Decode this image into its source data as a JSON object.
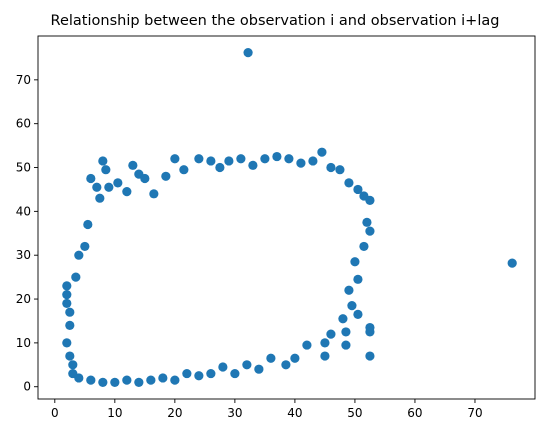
{
  "chart_data": {
    "type": "scatter",
    "title": "Relationship between the observation i and observation i+lag",
    "xlabel": "",
    "ylabel": "",
    "xlim": [
      -2.8,
      80.0
    ],
    "ylim": [
      -2.8,
      80.0
    ],
    "xticks": [
      0,
      10,
      20,
      30,
      40,
      50,
      60,
      70
    ],
    "yticks": [
      0,
      10,
      20,
      30,
      40,
      50,
      60,
      70
    ],
    "grid": false,
    "legend": "none",
    "series": [
      {
        "color": "#1f77b4",
        "marker": "circle",
        "points": [
          [
            32.2,
            76.2
          ],
          [
            76.2,
            28.2
          ],
          [
            2.0,
            23.0
          ],
          [
            2.0,
            21.0
          ],
          [
            2.0,
            19.0
          ],
          [
            2.5,
            17.0
          ],
          [
            2.5,
            14.0
          ],
          [
            2.0,
            10.0
          ],
          [
            2.5,
            7.0
          ],
          [
            3.0,
            5.0
          ],
          [
            3.0,
            3.0
          ],
          [
            3.5,
            25.0
          ],
          [
            4.0,
            30.0
          ],
          [
            5.0,
            32.0
          ],
          [
            5.5,
            37.0
          ],
          [
            6.0,
            47.5
          ],
          [
            7.0,
            45.5
          ],
          [
            7.5,
            43.0
          ],
          [
            8.0,
            51.5
          ],
          [
            8.5,
            49.5
          ],
          [
            9.0,
            45.5
          ],
          [
            10.5,
            46.5
          ],
          [
            12.0,
            44.5
          ],
          [
            13.0,
            50.5
          ],
          [
            14.0,
            48.5
          ],
          [
            15.0,
            47.5
          ],
          [
            16.5,
            44.0
          ],
          [
            18.5,
            48.0
          ],
          [
            20.0,
            52.0
          ],
          [
            21.5,
            49.5
          ],
          [
            24.0,
            52.0
          ],
          [
            26.0,
            51.5
          ],
          [
            27.5,
            50.0
          ],
          [
            29.0,
            51.5
          ],
          [
            31.0,
            52.0
          ],
          [
            33.0,
            50.5
          ],
          [
            35.0,
            52.0
          ],
          [
            37.0,
            52.5
          ],
          [
            39.0,
            52.0
          ],
          [
            41.0,
            51.0
          ],
          [
            43.0,
            51.5
          ],
          [
            44.5,
            53.5
          ],
          [
            46.0,
            50.0
          ],
          [
            47.5,
            49.5
          ],
          [
            49.0,
            46.5
          ],
          [
            50.5,
            45.0
          ],
          [
            51.5,
            43.5
          ],
          [
            52.5,
            42.5
          ],
          [
            52.0,
            37.5
          ],
          [
            52.5,
            35.5
          ],
          [
            51.5,
            32.0
          ],
          [
            50.0,
            28.5
          ],
          [
            50.5,
            24.5
          ],
          [
            49.0,
            22.0
          ],
          [
            49.5,
            18.5
          ],
          [
            50.5,
            16.5
          ],
          [
            48.0,
            15.5
          ],
          [
            52.5,
            13.5
          ],
          [
            52.5,
            12.5
          ],
          [
            48.5,
            9.5
          ],
          [
            52.5,
            7.0
          ],
          [
            48.5,
            12.5
          ],
          [
            46.0,
            12.0
          ],
          [
            45.0,
            10.0
          ],
          [
            45.0,
            7.0
          ],
          [
            42.0,
            9.5
          ],
          [
            40.0,
            6.5
          ],
          [
            38.5,
            5.0
          ],
          [
            36.0,
            6.5
          ],
          [
            34.0,
            4.0
          ],
          [
            32.0,
            5.0
          ],
          [
            30.0,
            3.0
          ],
          [
            28.0,
            4.5
          ],
          [
            26.0,
            3.0
          ],
          [
            24.0,
            2.5
          ],
          [
            22.0,
            3.0
          ],
          [
            20.0,
            1.5
          ],
          [
            18.0,
            2.0
          ],
          [
            16.0,
            1.5
          ],
          [
            14.0,
            1.0
          ],
          [
            12.0,
            1.5
          ],
          [
            10.0,
            1.0
          ],
          [
            8.0,
            1.0
          ],
          [
            6.0,
            1.5
          ],
          [
            4.0,
            2.0
          ]
        ]
      }
    ]
  }
}
